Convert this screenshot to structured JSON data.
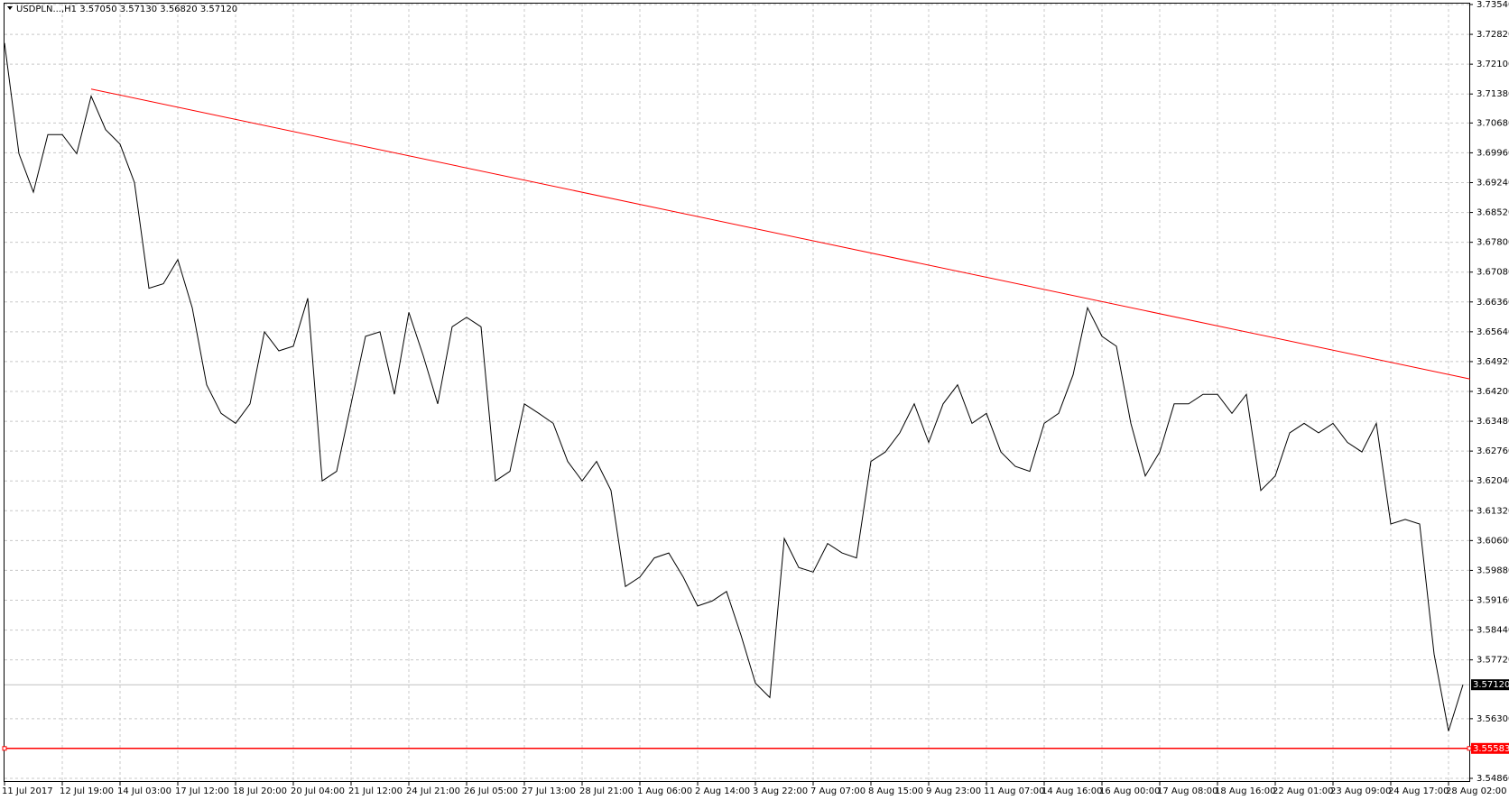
{
  "chart_data": {
    "type": "line",
    "header": "USDPLN...,H1  3.57050 3.57130 3.56820 3.57120",
    "categories": [
      "11 Jul 2017",
      null,
      null,
      null,
      "12 Jul 19:00",
      null,
      null,
      null,
      "14 Jul 03:00",
      null,
      null,
      null,
      "17 Jul 12:00",
      null,
      null,
      null,
      "18 Jul 20:00",
      null,
      null,
      null,
      "20 Jul 04:00",
      null,
      null,
      null,
      "21 Jul 12:00",
      null,
      null,
      null,
      "24 Jul 21:00",
      null,
      null,
      null,
      "26 Jul 05:00",
      null,
      null,
      null,
      "27 Jul 13:00",
      null,
      null,
      null,
      "28 Jul 21:00",
      null,
      null,
      null,
      "1 Aug 06:00",
      null,
      null,
      null,
      "2 Aug 14:00",
      null,
      null,
      null,
      "3 Aug 22:00",
      null,
      null,
      null,
      "7 Aug 07:00",
      null,
      null,
      null,
      "8 Aug 15:00",
      null,
      null,
      null,
      "9 Aug 23:00",
      null,
      null,
      null,
      "11 Aug 07:00",
      null,
      null,
      null,
      "14 Aug 16:00",
      null,
      null,
      null,
      "16 Aug 00:00",
      null,
      null,
      null,
      "17 Aug 08:00",
      null,
      null,
      null,
      "18 Aug 16:00",
      null,
      null,
      null,
      "22 Aug 01:00",
      null,
      null,
      null,
      "23 Aug 09:00",
      null,
      null,
      null,
      "24 Aug 17:00",
      null,
      null,
      null,
      "28 Aug 02:00",
      null
    ],
    "series": [
      {
        "color": "#000000",
        "values": [
          3.7261,
          3.6994,
          3.6901,
          3.704,
          3.704,
          3.6994,
          3.7133,
          3.7052,
          3.7017,
          3.6924,
          3.6669,
          3.668,
          3.6738,
          3.6622,
          3.6436,
          3.6367,
          3.6343,
          3.639,
          3.6564,
          3.6518,
          3.6529,
          3.6645,
          3.6204,
          3.6227,
          3.639,
          3.6553,
          3.6564,
          3.6413,
          3.6611,
          3.6506,
          3.639,
          3.6576,
          3.6599,
          3.6576,
          3.6204,
          3.6227,
          3.639,
          3.6367,
          3.6343,
          3.6251,
          3.6204,
          3.6251,
          3.6181,
          3.5949,
          3.5972,
          3.6018,
          3.603,
          3.5972,
          3.5902,
          3.5914,
          3.5937,
          3.5832,
          3.5716,
          3.5681,
          3.6065,
          3.5995,
          3.5984,
          3.6053,
          3.603,
          3.6018,
          3.6251,
          3.6274,
          3.632,
          3.639,
          3.6297,
          3.639,
          3.6436,
          3.6343,
          3.6367,
          3.6274,
          3.6239,
          3.6227,
          3.6343,
          3.6367,
          3.646,
          3.6622,
          3.6553,
          3.6529,
          3.6343,
          3.6216,
          3.6274,
          3.639,
          3.639,
          3.6413,
          3.6413,
          3.6367,
          3.6413,
          3.6181,
          3.6216,
          3.632,
          3.6343,
          3.632,
          3.6343,
          3.6297,
          3.6274,
          3.6343,
          3.61,
          3.6111,
          3.61,
          3.5786,
          3.56,
          3.5712
        ]
      }
    ],
    "ylim": [
      3.5486,
      3.7354
    ],
    "yticks": [
      {
        "value": 3.7354,
        "label": "3.73540"
      },
      {
        "value": 3.7282,
        "label": "3.72820"
      },
      {
        "value": 3.721,
        "label": "3.72100"
      },
      {
        "value": 3.7138,
        "label": "3.71380"
      },
      {
        "value": 3.7068,
        "label": "3.70680"
      },
      {
        "value": 3.6996,
        "label": "3.69960"
      },
      {
        "value": 3.6924,
        "label": "3.69240"
      },
      {
        "value": 3.6852,
        "label": "3.68520"
      },
      {
        "value": 3.678,
        "label": "3.67800"
      },
      {
        "value": 3.6708,
        "label": "3.67080"
      },
      {
        "value": 3.6636,
        "label": "3.66360"
      },
      {
        "value": 3.6564,
        "label": "3.65640"
      },
      {
        "value": 3.6492,
        "label": "3.64920"
      },
      {
        "value": 3.642,
        "label": "3.64200"
      },
      {
        "value": 3.6348,
        "label": "3.63480"
      },
      {
        "value": 3.6276,
        "label": "3.62760"
      },
      {
        "value": 3.6204,
        "label": "3.62040"
      },
      {
        "value": 3.6132,
        "label": "3.61320"
      },
      {
        "value": 3.606,
        "label": "3.60600"
      },
      {
        "value": 3.5988,
        "label": "3.59880"
      },
      {
        "value": 3.5916,
        "label": "3.59160"
      },
      {
        "value": 3.5844,
        "label": "3.58440"
      },
      {
        "value": 3.5772,
        "label": "3.57720"
      },
      {
        "value": 3.563,
        "label": "3.56300"
      },
      {
        "value": 3.5486,
        "label": "3.54860"
      }
    ],
    "grid": true,
    "trendline": {
      "color": "#ff0000",
      "x": [
        6,
        101.5
      ],
      "y": [
        3.715,
        3.645
      ]
    },
    "level": {
      "value": 3.55583,
      "label": "3.55583",
      "color": "#ff0000"
    },
    "last_price": {
      "value": 3.5712,
      "label": "3.57120"
    }
  }
}
